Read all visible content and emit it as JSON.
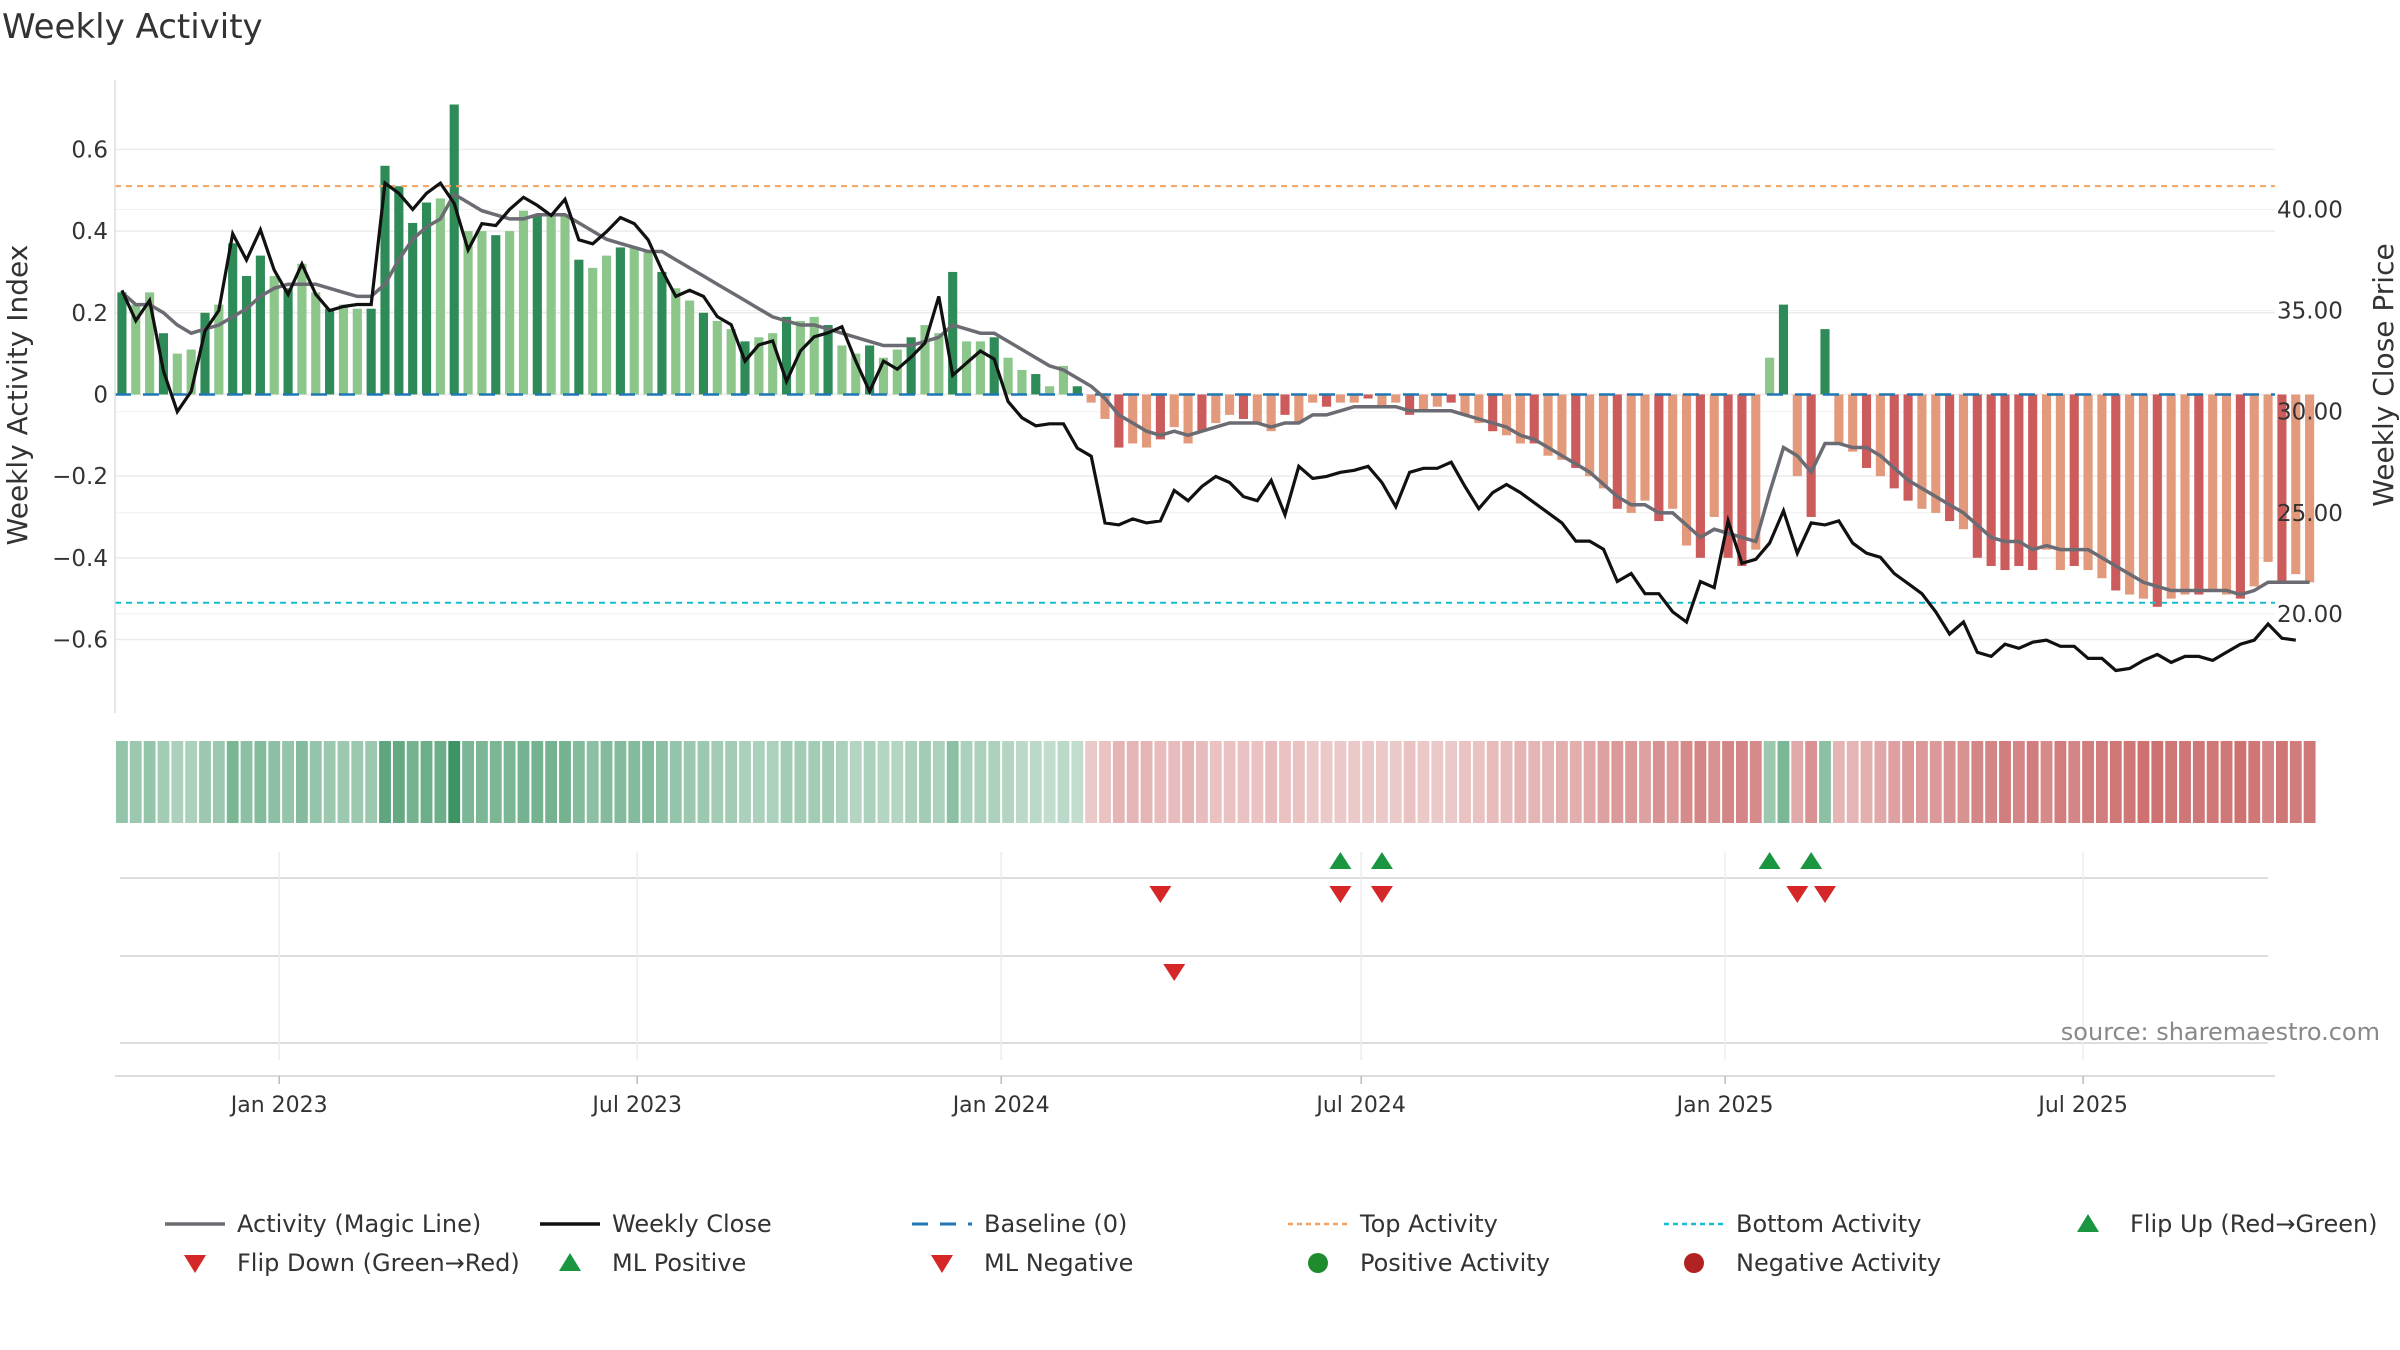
{
  "title": "Weekly Activity",
  "source": "source: sharemaestro.com",
  "colors": {
    "green_strong": "#2e8b57",
    "green_light": "#8cc68a",
    "red_strong": "#cc5c5c",
    "red_light": "#e39a7c",
    "magic_line": "#6b6b73",
    "weekly_close": "#111111",
    "baseline": "#1f77b4",
    "top_activity": "#f4a460",
    "bottom_activity": "#17becf",
    "marker_up": "#1a9641",
    "marker_down": "#d62728",
    "positive_dot": "#1e8c2d",
    "negative_dot": "#b22222"
  },
  "chart_data": {
    "type": "bar",
    "title": "Weekly Activity",
    "ylabel_left": "Weekly Activity Index",
    "ylabel_right": "Weekly Close Price",
    "ylim_left": [
      -0.78,
      0.77
    ],
    "ylim_right": [
      15.1,
      46.4
    ],
    "yticks_left": [
      {
        "v": 0.6,
        "label": "0.6"
      },
      {
        "v": 0.4,
        "label": "0.4"
      },
      {
        "v": 0.2,
        "label": "0.2"
      },
      {
        "v": 0,
        "label": "0"
      },
      {
        "v": -0.2,
        "label": "−0.2"
      },
      {
        "v": -0.4,
        "label": "−0.4"
      },
      {
        "v": -0.6,
        "label": "−0.6"
      }
    ],
    "yticks_right": [
      {
        "v": 40,
        "label": "40.00"
      },
      {
        "v": 35,
        "label": "35.00"
      },
      {
        "v": 30,
        "label": "30.00"
      },
      {
        "v": 25,
        "label": "25.00"
      },
      {
        "v": 20,
        "label": "20.00"
      }
    ],
    "x_start": "2022-10-10",
    "x_end": "2025-10-06",
    "xticks": [
      {
        "date": "2023-01-01",
        "label": "Jan 2023"
      },
      {
        "date": "2023-07-01",
        "label": "Jul 2023"
      },
      {
        "date": "2024-01-01",
        "label": "Jan 2024"
      },
      {
        "date": "2024-07-01",
        "label": "Jul 2024"
      },
      {
        "date": "2025-01-01",
        "label": "Jan 2025"
      },
      {
        "date": "2025-07-01",
        "label": "Jul 2025"
      }
    ],
    "first_week": "2022-10-10",
    "activity": [
      0.25,
      0.22,
      0.25,
      0.15,
      0.1,
      0.11,
      0.2,
      0.22,
      0.37,
      0.29,
      0.34,
      0.29,
      0.26,
      0.32,
      0.25,
      0.21,
      0.22,
      0.21,
      0.21,
      0.56,
      0.51,
      0.42,
      0.47,
      0.48,
      0.71,
      0.4,
      0.4,
      0.39,
      0.4,
      0.45,
      0.44,
      0.44,
      0.44,
      0.33,
      0.31,
      0.34,
      0.36,
      0.36,
      0.35,
      0.3,
      0.26,
      0.23,
      0.2,
      0.18,
      0.16,
      0.13,
      0.14,
      0.15,
      0.19,
      0.18,
      0.19,
      0.17,
      0.12,
      0.1,
      0.12,
      0.09,
      0.11,
      0.14,
      0.17,
      0.15,
      0.3,
      0.13,
      0.13,
      0.14,
      0.09,
      0.06,
      0.05,
      0.02,
      0.07,
      0.02,
      -0.02,
      -0.06,
      -0.13,
      -0.12,
      -0.13,
      -0.11,
      -0.08,
      -0.12,
      -0.09,
      -0.07,
      -0.05,
      -0.06,
      -0.07,
      -0.09,
      -0.05,
      -0.07,
      -0.02,
      -0.03,
      -0.02,
      -0.02,
      -0.01,
      -0.03,
      -0.02,
      -0.05,
      -0.04,
      -0.03,
      -0.02,
      -0.05,
      -0.07,
      -0.09,
      -0.1,
      -0.12,
      -0.12,
      -0.15,
      -0.16,
      -0.18,
      -0.2,
      -0.23,
      -0.28,
      -0.29,
      -0.26,
      -0.31,
      -0.28,
      -0.37,
      -0.4,
      -0.3,
      -0.4,
      -0.42,
      -0.38,
      0.09,
      0.22,
      -0.2,
      -0.3,
      0.16,
      -0.12,
      -0.14,
      -0.18,
      -0.2,
      -0.23,
      -0.26,
      -0.28,
      -0.29,
      -0.31,
      -0.33,
      -0.4,
      -0.42,
      -0.43,
      -0.42,
      -0.43,
      -0.38,
      -0.43,
      -0.42,
      -0.43,
      -0.45,
      -0.48,
      -0.49,
      -0.5,
      -0.52,
      -0.5,
      -0.49,
      -0.49,
      -0.48,
      -0.49,
      -0.5,
      -0.47,
      -0.41,
      -0.46,
      -0.44,
      -0.46
    ],
    "magic_line": [
      0.25,
      0.22,
      0.22,
      0.2,
      0.17,
      0.15,
      0.16,
      0.17,
      0.19,
      0.21,
      0.24,
      0.26,
      0.27,
      0.27,
      0.27,
      0.26,
      0.25,
      0.24,
      0.24,
      0.27,
      0.33,
      0.38,
      0.41,
      0.43,
      0.49,
      0.47,
      0.45,
      0.44,
      0.43,
      0.43,
      0.44,
      0.44,
      0.44,
      0.42,
      0.4,
      0.38,
      0.37,
      0.36,
      0.35,
      0.35,
      0.33,
      0.31,
      0.29,
      0.27,
      0.25,
      0.23,
      0.21,
      0.19,
      0.18,
      0.17,
      0.17,
      0.16,
      0.15,
      0.14,
      0.13,
      0.12,
      0.12,
      0.12,
      0.13,
      0.14,
      0.17,
      0.16,
      0.15,
      0.15,
      0.13,
      0.11,
      0.09,
      0.07,
      0.06,
      0.04,
      0.02,
      -0.01,
      -0.05,
      -0.07,
      -0.09,
      -0.1,
      -0.09,
      -0.1,
      -0.09,
      -0.08,
      -0.07,
      -0.07,
      -0.07,
      -0.08,
      -0.07,
      -0.07,
      -0.05,
      -0.05,
      -0.04,
      -0.03,
      -0.03,
      -0.03,
      -0.03,
      -0.04,
      -0.04,
      -0.04,
      -0.04,
      -0.05,
      -0.06,
      -0.07,
      -0.08,
      -0.1,
      -0.11,
      -0.13,
      -0.15,
      -0.17,
      -0.19,
      -0.22,
      -0.25,
      -0.27,
      -0.27,
      -0.29,
      -0.29,
      -0.32,
      -0.35,
      -0.33,
      -0.34,
      -0.35,
      -0.36,
      -0.24,
      -0.13,
      -0.15,
      -0.19,
      -0.12,
      -0.12,
      -0.13,
      -0.13,
      -0.15,
      -0.18,
      -0.21,
      -0.23,
      -0.25,
      -0.27,
      -0.29,
      -0.32,
      -0.35,
      -0.36,
      -0.36,
      -0.38,
      -0.37,
      -0.38,
      -0.38,
      -0.38,
      -0.4,
      -0.42,
      -0.44,
      -0.46,
      -0.47,
      -0.48,
      -0.48,
      -0.48,
      -0.48,
      -0.48,
      -0.49,
      -0.48,
      -0.46,
      -0.46,
      -0.46,
      -0.46
    ],
    "weekly_close": [
      36.0,
      34.5,
      35.5,
      32.0,
      30.0,
      31.0,
      34.0,
      35.0,
      38.8,
      37.5,
      39.0,
      37.0,
      35.8,
      37.3,
      35.8,
      35.0,
      35.2,
      35.3,
      35.3,
      41.3,
      40.8,
      40.0,
      40.8,
      41.3,
      40.3,
      38.0,
      39.3,
      39.2,
      40.0,
      40.6,
      40.2,
      39.7,
      40.5,
      38.5,
      38.3,
      38.9,
      39.6,
      39.3,
      38.5,
      37.0,
      35.7,
      36.0,
      35.7,
      34.7,
      34.3,
      32.5,
      33.3,
      33.5,
      31.5,
      33.0,
      33.7,
      33.9,
      34.2,
      32.5,
      31.0,
      32.5,
      32.1,
      32.7,
      33.4,
      35.7,
      31.8,
      32.4,
      33.0,
      32.6,
      30.5,
      29.7,
      29.3,
      29.4,
      29.4,
      28.2,
      27.8,
      24.5,
      24.4,
      24.7,
      24.5,
      24.6,
      26.1,
      25.6,
      26.3,
      26.8,
      26.5,
      25.8,
      25.6,
      26.6,
      24.9,
      27.3,
      26.7,
      26.8,
      27.0,
      27.1,
      27.3,
      26.5,
      25.3,
      27.0,
      27.2,
      27.2,
      27.5,
      26.3,
      25.2,
      26.0,
      26.4,
      26.0,
      25.5,
      25.0,
      24.5,
      23.6,
      23.6,
      23.2,
      21.6,
      22.0,
      21.0,
      21.0,
      20.1,
      19.6,
      21.6,
      21.3,
      24.6,
      22.5,
      22.7,
      23.5,
      25.1,
      23.0,
      24.5,
      24.4,
      24.6,
      23.5,
      23.0,
      22.8,
      22.0,
      21.5,
      21.0,
      20.1,
      19.0,
      19.6,
      18.1,
      17.9,
      18.5,
      18.3,
      18.6,
      18.7,
      18.4,
      18.4,
      17.8,
      17.8,
      17.2,
      17.3,
      17.7,
      18.0,
      17.6,
      17.9,
      17.9,
      17.7,
      18.1,
      18.5,
      18.7,
      19.5,
      18.8,
      18.7
    ],
    "thresholds": {
      "top_activity": 0.51,
      "bottom_activity": -0.51,
      "baseline": 0
    },
    "strip_intensity": [
      0.35,
      0.3,
      0.35,
      0.25,
      0.2,
      0.2,
      0.3,
      0.3,
      0.5,
      0.4,
      0.45,
      0.4,
      0.35,
      0.45,
      0.35,
      0.3,
      0.3,
      0.3,
      0.3,
      0.7,
      0.65,
      0.55,
      0.6,
      0.6,
      0.9,
      0.5,
      0.5,
      0.5,
      0.5,
      0.55,
      0.55,
      0.55,
      0.55,
      0.45,
      0.4,
      0.45,
      0.45,
      0.45,
      0.45,
      0.4,
      0.35,
      0.3,
      0.3,
      0.25,
      0.25,
      0.2,
      0.2,
      0.2,
      0.25,
      0.25,
      0.25,
      0.25,
      0.2,
      0.15,
      0.2,
      0.15,
      0.15,
      0.2,
      0.25,
      0.2,
      0.4,
      0.2,
      0.2,
      0.2,
      0.15,
      0.1,
      0.1,
      0.05,
      0.1,
      0.05,
      0.05,
      0.1,
      0.2,
      0.2,
      0.2,
      0.15,
      0.15,
      0.2,
      0.15,
      0.1,
      0.1,
      0.1,
      0.1,
      0.15,
      0.1,
      0.1,
      0.05,
      0.05,
      0.05,
      0.05,
      0.05,
      0.05,
      0.05,
      0.1,
      0.05,
      0.05,
      0.05,
      0.1,
      0.1,
      0.15,
      0.15,
      0.2,
      0.2,
      0.2,
      0.25,
      0.25,
      0.3,
      0.35,
      0.4,
      0.4,
      0.35,
      0.45,
      0.4,
      0.5,
      0.55,
      0.45,
      0.55,
      0.55,
      0.5,
      0.3,
      0.5,
      0.3,
      0.45,
      0.4,
      0.2,
      0.2,
      0.25,
      0.3,
      0.35,
      0.4,
      0.4,
      0.4,
      0.45,
      0.45,
      0.55,
      0.55,
      0.6,
      0.55,
      0.6,
      0.5,
      0.6,
      0.55,
      0.6,
      0.6,
      0.65,
      0.65,
      0.7,
      0.7,
      0.65,
      0.65,
      0.65,
      0.65,
      0.65,
      0.7,
      0.65,
      0.55,
      0.65,
      0.6,
      0.65
    ],
    "flip_up_weeks": [
      88,
      91,
      119,
      122
    ],
    "flip_down_weeks": [
      75,
      88,
      91,
      121,
      123
    ],
    "ml_negative_weeks": [
      75
    ],
    "legend": [
      {
        "label": "Activity (Magic Line)",
        "kind": "line",
        "color": "#6b6b73"
      },
      {
        "label": "Weekly Close",
        "kind": "line",
        "color": "#111111"
      },
      {
        "label": "Baseline (0)",
        "kind": "dash",
        "color": "#1f77b4"
      },
      {
        "label": "Top Activity",
        "kind": "dot",
        "color": "#f4a460"
      },
      {
        "label": "Bottom Activity",
        "kind": "dot",
        "color": "#17becf"
      },
      {
        "label": "Flip Up (Red→Green)",
        "kind": "tri-up",
        "color": "#1a9641"
      },
      {
        "label": "Flip Down (Green→Red)",
        "kind": "tri-down",
        "color": "#d62728"
      },
      {
        "label": "ML Positive",
        "kind": "tri-up",
        "color": "#1a9641"
      },
      {
        "label": "ML Negative",
        "kind": "tri-down",
        "color": "#d62728"
      },
      {
        "label": "Positive Activity",
        "kind": "circle",
        "color": "#1e8c2d"
      },
      {
        "label": "Negative Activity",
        "kind": "circle",
        "color": "#b22222"
      }
    ]
  }
}
